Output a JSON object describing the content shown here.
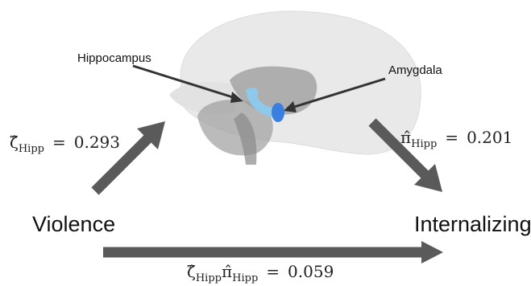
{
  "labels": {
    "hippocampus": "Hippocampus",
    "amygdala": "Amygdala",
    "exposure": "Violence",
    "outcome": "Internalizing"
  },
  "paths": {
    "a": {
      "symbol": "ζ̂",
      "subscript": "Hipp",
      "equals": "=",
      "value": 0.293
    },
    "b": {
      "symbol": "π̂",
      "subscript": "Hipp",
      "equals": "=",
      "value": 0.201
    },
    "ab": {
      "symbol": "ζ̂",
      "subscript": "Hipp",
      "symbol2": "π̂",
      "subscript2": "Hipp",
      "equals": "=",
      "value": 0.059
    }
  }
}
